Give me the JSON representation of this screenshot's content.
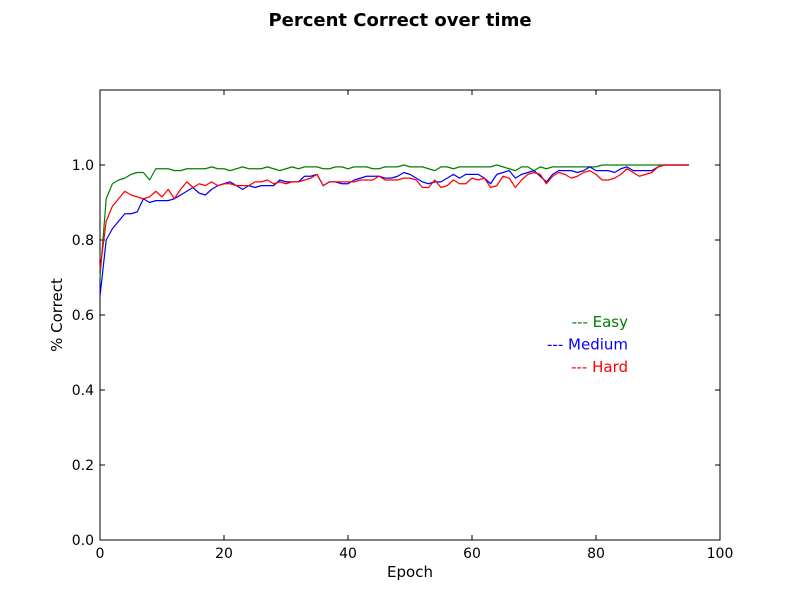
{
  "chart_data": {
    "type": "line",
    "title": "Percent Correct over time",
    "xlabel": "Epoch",
    "ylabel": "% Correct",
    "xlim": [
      0,
      100
    ],
    "ylim": [
      0,
      1.2
    ],
    "x_ticks": [
      "0",
      "20",
      "40",
      "60",
      "80",
      "100"
    ],
    "y_ticks": [
      "0.0",
      "0.2",
      "0.4",
      "0.6",
      "0.8",
      "1.0"
    ],
    "grid": false,
    "legend_placement": "center-right",
    "x": [
      0,
      1,
      2,
      3,
      4,
      5,
      6,
      7,
      8,
      9,
      10,
      11,
      12,
      13,
      14,
      15,
      16,
      17,
      18,
      19,
      20,
      21,
      22,
      23,
      24,
      25,
      26,
      27,
      28,
      29,
      30,
      31,
      32,
      33,
      34,
      35,
      36,
      37,
      38,
      39,
      40,
      41,
      42,
      43,
      44,
      45,
      46,
      47,
      48,
      49,
      50,
      51,
      52,
      53,
      54,
      55,
      56,
      57,
      58,
      59,
      60,
      61,
      62,
      63,
      64,
      65,
      66,
      67,
      68,
      69,
      70,
      71,
      72,
      73,
      74,
      75,
      76,
      77,
      78,
      79,
      80,
      81,
      82,
      83,
      84,
      85,
      86,
      87,
      88,
      89,
      90,
      91,
      92,
      93,
      94,
      95
    ],
    "series": [
      {
        "name": "--- Easy",
        "color": "#008000",
        "values": [
          0.7,
          0.91,
          0.95,
          0.96,
          0.965,
          0.975,
          0.98,
          0.98,
          0.96,
          0.99,
          0.99,
          0.99,
          0.985,
          0.985,
          0.99,
          0.99,
          0.99,
          0.99,
          0.995,
          0.99,
          0.99,
          0.985,
          0.99,
          0.995,
          0.99,
          0.99,
          0.99,
          0.995,
          0.99,
          0.985,
          0.99,
          0.995,
          0.99,
          0.995,
          0.995,
          0.995,
          0.99,
          0.99,
          0.995,
          0.995,
          0.99,
          0.995,
          0.995,
          0.995,
          0.99,
          0.99,
          0.995,
          0.995,
          0.995,
          1.0,
          0.995,
          0.995,
          0.995,
          0.99,
          0.985,
          0.995,
          0.995,
          0.99,
          0.995,
          0.995,
          0.995,
          0.995,
          0.995,
          0.995,
          1.0,
          0.995,
          0.99,
          0.985,
          0.995,
          0.995,
          0.985,
          0.995,
          0.99,
          0.995,
          0.995,
          0.995,
          0.995,
          0.995,
          0.995,
          0.995,
          0.995,
          1.0,
          1.0,
          1.0,
          1.0,
          1.0,
          1.0,
          1.0,
          1.0,
          1.0,
          1.0,
          1.0,
          1.0,
          1.0,
          1.0,
          1.0
        ]
      },
      {
        "name": "--- Medium",
        "color": "#0000ff",
        "values": [
          0.65,
          0.8,
          0.83,
          0.85,
          0.87,
          0.87,
          0.875,
          0.91,
          0.9,
          0.905,
          0.905,
          0.905,
          0.91,
          0.92,
          0.93,
          0.94,
          0.925,
          0.92,
          0.935,
          0.945,
          0.95,
          0.955,
          0.945,
          0.935,
          0.945,
          0.94,
          0.945,
          0.945,
          0.945,
          0.96,
          0.955,
          0.955,
          0.955,
          0.97,
          0.97,
          0.975,
          0.945,
          0.955,
          0.955,
          0.95,
          0.95,
          0.96,
          0.965,
          0.97,
          0.97,
          0.97,
          0.965,
          0.965,
          0.97,
          0.98,
          0.975,
          0.965,
          0.955,
          0.95,
          0.955,
          0.955,
          0.965,
          0.975,
          0.965,
          0.975,
          0.975,
          0.975,
          0.965,
          0.95,
          0.975,
          0.98,
          0.985,
          0.965,
          0.975,
          0.98,
          0.985,
          0.97,
          0.955,
          0.975,
          0.985,
          0.985,
          0.985,
          0.98,
          0.985,
          0.995,
          0.985,
          0.985,
          0.985,
          0.98,
          0.99,
          0.995,
          0.985,
          0.985,
          0.985,
          0.985,
          0.995,
          1.0,
          1.0,
          1.0,
          1.0,
          1.0
        ]
      },
      {
        "name": "--- Hard",
        "color": "#ff0000",
        "values": [
          0.72,
          0.85,
          0.89,
          0.91,
          0.93,
          0.92,
          0.915,
          0.91,
          0.915,
          0.93,
          0.915,
          0.935,
          0.91,
          0.935,
          0.955,
          0.94,
          0.95,
          0.945,
          0.955,
          0.945,
          0.95,
          0.95,
          0.945,
          0.945,
          0.945,
          0.955,
          0.955,
          0.96,
          0.95,
          0.955,
          0.95,
          0.955,
          0.955,
          0.96,
          0.965,
          0.975,
          0.945,
          0.955,
          0.955,
          0.955,
          0.955,
          0.955,
          0.96,
          0.96,
          0.96,
          0.97,
          0.96,
          0.96,
          0.96,
          0.965,
          0.965,
          0.96,
          0.94,
          0.94,
          0.96,
          0.94,
          0.945,
          0.96,
          0.95,
          0.95,
          0.965,
          0.96,
          0.965,
          0.94,
          0.945,
          0.97,
          0.965,
          0.94,
          0.96,
          0.975,
          0.98,
          0.975,
          0.95,
          0.97,
          0.98,
          0.975,
          0.965,
          0.97,
          0.98,
          0.985,
          0.975,
          0.96,
          0.96,
          0.965,
          0.975,
          0.99,
          0.98,
          0.97,
          0.975,
          0.98,
          0.995,
          1.0,
          1.0,
          1.0,
          1.0,
          1.0
        ]
      }
    ]
  }
}
